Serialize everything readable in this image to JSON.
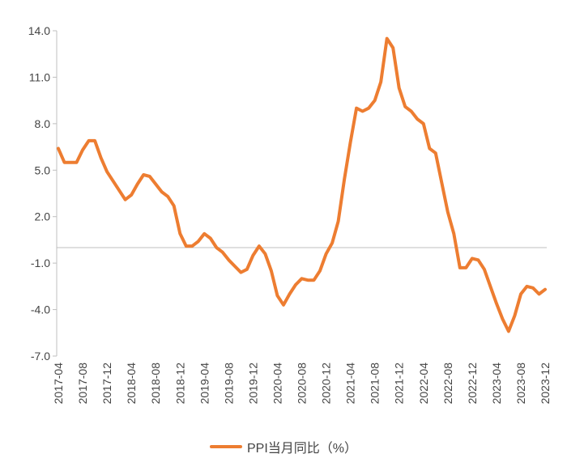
{
  "chart_data": {
    "type": "line",
    "title": "",
    "xlabel": "",
    "ylabel": "",
    "ylim": [
      -7.0,
      14.0
    ],
    "yticks": [
      14.0,
      11.0,
      8.0,
      5.0,
      2.0,
      -1.0,
      -4.0,
      -7.0
    ],
    "ytick_labels": [
      "14.0",
      "11.0",
      "8.0",
      "5.0",
      "2.0",
      "-1.0",
      "-4.0",
      "-7.0"
    ],
    "x": [
      "2017-04",
      "2017-05",
      "2017-06",
      "2017-07",
      "2017-08",
      "2017-09",
      "2017-10",
      "2017-11",
      "2017-12",
      "2018-01",
      "2018-02",
      "2018-03",
      "2018-04",
      "2018-05",
      "2018-06",
      "2018-07",
      "2018-08",
      "2018-09",
      "2018-10",
      "2018-11",
      "2018-12",
      "2019-01",
      "2019-02",
      "2019-03",
      "2019-04",
      "2019-05",
      "2019-06",
      "2019-07",
      "2019-08",
      "2019-09",
      "2019-10",
      "2019-11",
      "2019-12",
      "2020-01",
      "2020-02",
      "2020-03",
      "2020-04",
      "2020-05",
      "2020-06",
      "2020-07",
      "2020-08",
      "2020-09",
      "2020-10",
      "2020-11",
      "2020-12",
      "2021-01",
      "2021-02",
      "2021-03",
      "2021-04",
      "2021-05",
      "2021-06",
      "2021-07",
      "2021-08",
      "2021-09",
      "2021-10",
      "2021-11",
      "2021-12",
      "2022-01",
      "2022-02",
      "2022-03",
      "2022-04",
      "2022-05",
      "2022-06",
      "2022-07",
      "2022-08",
      "2022-09",
      "2022-10",
      "2022-11",
      "2022-12",
      "2023-01",
      "2023-02",
      "2023-03",
      "2023-04",
      "2023-05",
      "2023-06",
      "2023-07",
      "2023-08",
      "2023-09",
      "2023-10",
      "2023-11",
      "2023-12"
    ],
    "xtick_labels": [
      "2017-04",
      "2017-08",
      "2017-12",
      "2018-04",
      "2018-08",
      "2018-12",
      "2019-04",
      "2019-08",
      "2019-12",
      "2020-04",
      "2020-08",
      "2020-12",
      "2021-04",
      "2021-08",
      "2021-12",
      "2022-04",
      "2022-08",
      "2022-12",
      "2023-04",
      "2023-08",
      "2023-12"
    ],
    "series": [
      {
        "name": "PPI当月同比（%）",
        "color": "#ED7D31",
        "values": [
          6.4,
          5.5,
          5.5,
          5.5,
          6.3,
          6.9,
          6.9,
          5.8,
          4.9,
          4.3,
          3.7,
          3.1,
          3.4,
          4.1,
          4.7,
          4.6,
          4.1,
          3.6,
          3.3,
          2.7,
          0.9,
          0.1,
          0.1,
          0.4,
          0.9,
          0.6,
          0.0,
          -0.3,
          -0.8,
          -1.2,
          -1.6,
          -1.4,
          -0.5,
          0.1,
          -0.4,
          -1.5,
          -3.1,
          -3.7,
          -3.0,
          -2.4,
          -2.0,
          -2.1,
          -2.1,
          -1.5,
          -0.4,
          0.3,
          1.7,
          4.4,
          6.8,
          9.0,
          8.8,
          9.0,
          9.5,
          10.7,
          13.5,
          12.9,
          10.3,
          9.1,
          8.8,
          8.3,
          8.0,
          6.4,
          6.1,
          4.2,
          2.3,
          0.9,
          -1.3,
          -1.3,
          -0.7,
          -0.8,
          -1.4,
          -2.5,
          -3.6,
          -4.6,
          -5.4,
          -4.4,
          -3.0,
          -2.5,
          -2.6,
          -3.0,
          -2.7
        ]
      }
    ],
    "grid": false,
    "legend_position": "bottom"
  }
}
